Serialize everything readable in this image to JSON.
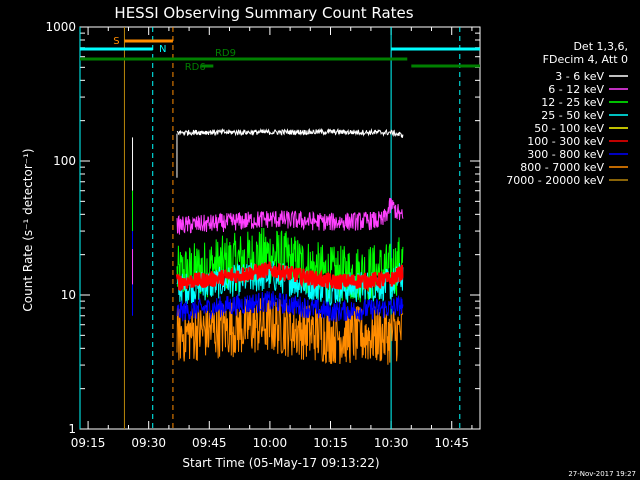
{
  "chart_data": {
    "type": "line",
    "title": "HESSI Observing Summary Count Rates",
    "xlabel": "Start Time (05-May-17 09:13:22)",
    "ylabel": "Count Rate (s⁻¹ detector⁻¹)",
    "yscale": "log",
    "ylim": [
      1,
      1000
    ],
    "xlim": [
      "09:13",
      "10:52"
    ],
    "x_ticks": [
      "09:15",
      "09:30",
      "09:45",
      "10:00",
      "10:15",
      "10:30",
      "10:45"
    ],
    "y_ticks": [
      "1",
      "10",
      "100",
      "1000"
    ],
    "grid": false,
    "legend_position": "right",
    "legend_header": [
      "Det 1,3,6,",
      "FDecim 4, Att 0"
    ],
    "timestamp": "27-Nov-2017 19:27",
    "series": [
      {
        "name": "3 - 6 keV",
        "color": "#ffffff",
        "x": [
          "09:37",
          "09:45",
          "10:00",
          "10:15",
          "10:30",
          "10:33"
        ],
        "values": [
          163,
          164,
          164,
          165,
          163,
          155
        ]
      },
      {
        "name": "6 - 12 keV",
        "color": "#ff40ff",
        "x": [
          "09:37",
          "09:45",
          "10:00",
          "10:15",
          "10:28",
          "10:30",
          "10:33"
        ],
        "values": [
          33,
          34,
          37,
          35,
          36,
          47,
          37
        ]
      },
      {
        "name": "12 - 25 keV",
        "color": "#00ff00",
        "x": [
          "09:37",
          "09:45",
          "10:00",
          "10:15",
          "10:30",
          "10:33"
        ],
        "values": [
          14,
          16,
          20,
          14,
          15,
          18
        ]
      },
      {
        "name": "25 - 50 keV",
        "color": "#00ffff",
        "x": [
          "09:37",
          "09:45",
          "10:00",
          "10:15",
          "10:30",
          "10:33"
        ],
        "values": [
          11,
          12,
          14,
          11,
          12,
          14
        ]
      },
      {
        "name": "50 - 100 keV",
        "color": "#ffff00",
        "x": [],
        "values": []
      },
      {
        "name": "100 - 300 keV",
        "color": "#ff0000",
        "x": [
          "09:37",
          "09:45",
          "10:00",
          "10:15",
          "10:30",
          "10:33"
        ],
        "values": [
          12.5,
          13,
          15.5,
          12.5,
          13,
          15
        ]
      },
      {
        "name": "300 - 800 keV",
        "color": "#0000ff",
        "x": [
          "09:37",
          "09:45",
          "10:00",
          "10:15",
          "10:30",
          "10:33"
        ],
        "values": [
          7.5,
          8,
          9,
          7.5,
          8,
          8.5
        ]
      },
      {
        "name": "800 - 7000 keV",
        "color": "#ff8c00",
        "x": [
          "09:37",
          "09:45",
          "10:00",
          "10:15",
          "10:30",
          "10:33"
        ],
        "values": [
          5,
          5.5,
          6,
          5,
          5,
          5.5
        ]
      },
      {
        "name": "7000 - 20000 keV",
        "color": "#b8860b",
        "x": [],
        "values": []
      }
    ],
    "state_bars": [
      {
        "label": "S",
        "color": "#ff8c00",
        "start": "09:24",
        "end": "09:36"
      },
      {
        "label": "N",
        "color": "#00ffff",
        "start": "09:13",
        "end": "09:31"
      },
      {
        "label": "",
        "color": "#00ffff",
        "start": "10:30",
        "end": "10:52"
      },
      {
        "label": "RD9",
        "color": "#008000",
        "start": "09:13",
        "end": "10:34"
      },
      {
        "label": "RD6",
        "color": "#008000",
        "start": "09:43",
        "end": "09:46"
      },
      {
        "label": "",
        "color": "#008000",
        "start": "10:35",
        "end": "10:52"
      }
    ],
    "vertical_markers": [
      {
        "time": "09:13",
        "color": "#00ffff",
        "style": "solid"
      },
      {
        "time": "09:24",
        "color": "#b8860b",
        "style": "solid"
      },
      {
        "time": "09:31",
        "color": "#00ffff",
        "style": "dashed"
      },
      {
        "time": "09:36",
        "color": "#ff8c00",
        "style": "dashed"
      },
      {
        "time": "10:30",
        "color": "#00ffff",
        "style": "solid"
      },
      {
        "time": "10:47",
        "color": "#00ffff",
        "style": "dashed"
      }
    ]
  }
}
